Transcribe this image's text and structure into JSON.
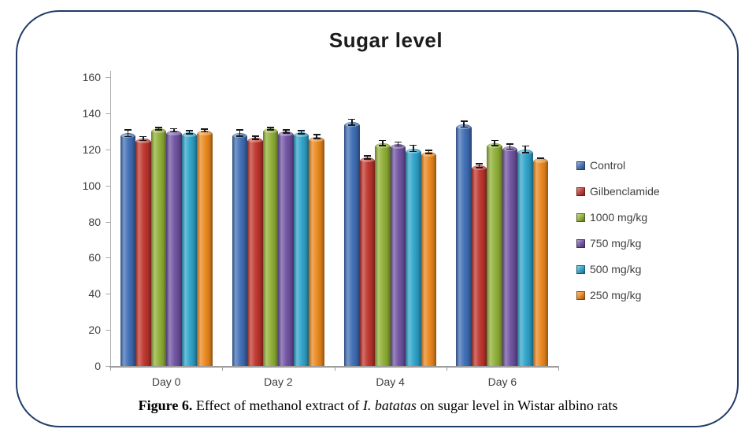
{
  "figure": {
    "title": "Sugar level",
    "caption": {
      "label": "Figure 6. ",
      "before_species": "Effect of methanol extract of ",
      "species": "I. batatas",
      "after_species": " on sugar level in Wistar albino rats"
    }
  },
  "chart_data": {
    "type": "bar",
    "title": "Sugar level",
    "categories": [
      "Day 0",
      "Day 2",
      "Day 4",
      "Day 6"
    ],
    "series": [
      {
        "name": "Control",
        "color": "#3e6db5",
        "values": [
          129,
          129,
          135,
          134
        ],
        "errors": [
          2,
          1.8,
          1.8,
          1.8
        ]
      },
      {
        "name": "Gilbenclamide",
        "color": "#be342c",
        "values": [
          126,
          126.5,
          115.5,
          111
        ],
        "errors": [
          1.2,
          1,
          1,
          1.2
        ]
      },
      {
        "name": "1000 mg/kg",
        "color": "#8faf34",
        "values": [
          131.5,
          131.5,
          123.5,
          123.5
        ],
        "errors": [
          0.8,
          0.8,
          1.5,
          1.5
        ]
      },
      {
        "name": "750 mg/kg",
        "color": "#6f51a1",
        "values": [
          130.5,
          130,
          123,
          121.5
        ],
        "errors": [
          1,
          1,
          1.2,
          1.5
        ]
      },
      {
        "name": "500 mg/kg",
        "color": "#2ea2ca",
        "values": [
          129.5,
          129.5,
          120.5,
          120
        ],
        "errors": [
          1,
          1,
          1.8,
          2
        ]
      },
      {
        "name": "250 mg/kg",
        "color": "#e9861c",
        "values": [
          130.5,
          127,
          118.5,
          115
        ],
        "errors": [
          0.8,
          1.2,
          1,
          0.3
        ]
      }
    ],
    "ylim": [
      0,
      160
    ],
    "ytick_step": 20,
    "yticks": [
      0,
      20,
      40,
      60,
      80,
      100,
      120,
      140,
      160
    ],
    "xlabel": "",
    "ylabel": "",
    "grid": false,
    "error_bars": true,
    "legend_position": "right",
    "frame_border_color": "#1f3c68"
  }
}
